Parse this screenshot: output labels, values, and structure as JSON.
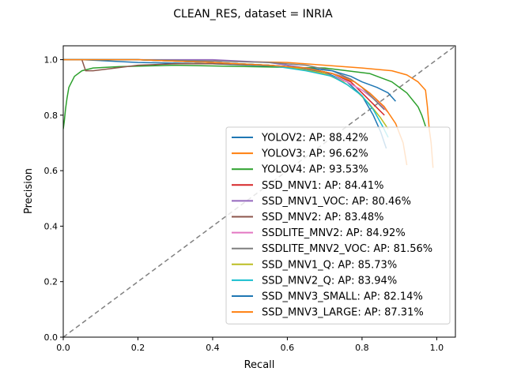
{
  "chart_data": {
    "type": "line",
    "title": "CLEAN_RES, dataset = INRIA",
    "xlabel": "Recall",
    "ylabel": "Precision",
    "xlim": [
      0.0,
      1.05
    ],
    "ylim": [
      0.0,
      1.05
    ],
    "xticks": [
      "0.0",
      "0.2",
      "0.4",
      "0.6",
      "0.8",
      "1.0"
    ],
    "yticks": [
      "0.0",
      "0.2",
      "0.4",
      "0.6",
      "0.8",
      "1.0"
    ],
    "grid": false,
    "legend_position": "lower right",
    "reference_line": {
      "x": [
        0,
        1.05
      ],
      "y": [
        0,
        1.05
      ],
      "style": "dashed",
      "color": "#808080"
    },
    "series": [
      {
        "name": "YOLOV2: AP: 88.42%",
        "color": "#1f77b4",
        "x": [
          0.0,
          0.05,
          0.2,
          0.4,
          0.6,
          0.7,
          0.76,
          0.8,
          0.83,
          0.85,
          0.86,
          0.865
        ],
        "y": [
          1.0,
          1.0,
          0.99,
          0.985,
          0.975,
          0.955,
          0.92,
          0.87,
          0.8,
          0.74,
          0.7,
          0.68
        ]
      },
      {
        "name": "YOLOV3: AP: 96.62%",
        "color": "#ff7f0e",
        "x": [
          0.0,
          0.2,
          0.4,
          0.6,
          0.7,
          0.8,
          0.88,
          0.92,
          0.95,
          0.97,
          0.975,
          0.98,
          0.985,
          0.99
        ],
        "y": [
          1.0,
          1.0,
          0.995,
          0.99,
          0.98,
          0.97,
          0.96,
          0.945,
          0.92,
          0.89,
          0.83,
          0.75,
          0.7,
          0.61
        ]
      },
      {
        "name": "YOLOV4: AP: 93.53%",
        "color": "#2ca02c",
        "x": [
          0.0,
          0.003,
          0.006,
          0.01,
          0.015,
          0.03,
          0.05,
          0.08,
          0.15,
          0.3,
          0.5,
          0.7,
          0.82,
          0.88,
          0.92,
          0.95,
          0.96,
          0.97
        ],
        "y": [
          0.75,
          0.78,
          0.82,
          0.86,
          0.9,
          0.94,
          0.96,
          0.97,
          0.975,
          0.98,
          0.975,
          0.97,
          0.95,
          0.92,
          0.88,
          0.83,
          0.8,
          0.76
        ]
      },
      {
        "name": "SSD_MNV1: AP: 84.41%",
        "color": "#d62728",
        "x": [
          0.0,
          0.2,
          0.4,
          0.55,
          0.65,
          0.72,
          0.77,
          0.8,
          0.83,
          0.86
        ],
        "y": [
          1.0,
          1.0,
          0.99,
          0.98,
          0.97,
          0.95,
          0.92,
          0.88,
          0.84,
          0.8
        ]
      },
      {
        "name": "SSD_MNV1_VOC: AP: 80.46%",
        "color": "#9467bd",
        "x": [
          0.0,
          0.2,
          0.4,
          0.55,
          0.65,
          0.72,
          0.77,
          0.8,
          0.83,
          0.86
        ],
        "y": [
          1.0,
          1.0,
          1.0,
          0.99,
          0.97,
          0.95,
          0.93,
          0.9,
          0.86,
          0.82
        ]
      },
      {
        "name": "SSD_MNV2: AP: 83.48%",
        "color": "#8c564b",
        "x": [
          0.0,
          0.05,
          0.06,
          0.08,
          0.14,
          0.2,
          0.3,
          0.4,
          0.55,
          0.65,
          0.72,
          0.78,
          0.82,
          0.86
        ],
        "y": [
          1.0,
          1.0,
          0.96,
          0.96,
          0.97,
          0.98,
          0.985,
          0.985,
          0.98,
          0.97,
          0.95,
          0.92,
          0.88,
          0.83
        ]
      },
      {
        "name": "SSDLITE_MNV2: AP: 84.92%",
        "color": "#e377c2",
        "x": [
          0.0,
          0.2,
          0.4,
          0.55,
          0.62,
          0.7,
          0.76,
          0.8,
          0.84,
          0.87
        ],
        "y": [
          1.0,
          1.0,
          0.99,
          0.98,
          0.97,
          0.95,
          0.92,
          0.89,
          0.85,
          0.81
        ]
      },
      {
        "name": "SSDLITE_MNV2_VOC: AP: 81.56%",
        "color": "#7f7f7f",
        "x": [
          0.0,
          0.2,
          0.4,
          0.55,
          0.65,
          0.72,
          0.77,
          0.8,
          0.83,
          0.86
        ],
        "y": [
          1.0,
          1.0,
          0.995,
          0.99,
          0.98,
          0.96,
          0.93,
          0.9,
          0.86,
          0.82
        ]
      },
      {
        "name": "SSD_MNV1_Q: AP: 85.73%",
        "color": "#bcbd22",
        "x": [
          0.0,
          0.2,
          0.4,
          0.55,
          0.62,
          0.7,
          0.75,
          0.79,
          0.82,
          0.85,
          0.87
        ],
        "y": [
          1.0,
          1.0,
          0.99,
          0.98,
          0.97,
          0.95,
          0.92,
          0.88,
          0.84,
          0.79,
          0.75
        ]
      },
      {
        "name": "SSD_MNV2_Q: AP: 83.94%",
        "color": "#17becf",
        "x": [
          0.0,
          0.2,
          0.4,
          0.55,
          0.65,
          0.72,
          0.76,
          0.8,
          0.83,
          0.855,
          0.87
        ],
        "y": [
          1.0,
          1.0,
          0.99,
          0.98,
          0.96,
          0.94,
          0.91,
          0.87,
          0.82,
          0.76,
          0.72
        ]
      },
      {
        "name": "SSD_MNV3_SMALL: AP: 82.14%",
        "color": "#1f77b4",
        "x": [
          0.0,
          0.2,
          0.4,
          0.55,
          0.65,
          0.72,
          0.77,
          0.8,
          0.84,
          0.87,
          0.89
        ],
        "y": [
          1.0,
          1.0,
          0.99,
          0.98,
          0.97,
          0.96,
          0.94,
          0.92,
          0.9,
          0.88,
          0.85
        ]
      },
      {
        "name": "SSD_MNV3_LARGE: AP: 87.31%",
        "color": "#ff7f0e",
        "x": [
          0.0,
          0.2,
          0.4,
          0.55,
          0.65,
          0.72,
          0.78,
          0.82,
          0.86,
          0.89,
          0.91,
          0.92
        ],
        "y": [
          1.0,
          1.0,
          0.99,
          0.98,
          0.97,
          0.95,
          0.92,
          0.88,
          0.83,
          0.77,
          0.7,
          0.62
        ]
      }
    ]
  }
}
